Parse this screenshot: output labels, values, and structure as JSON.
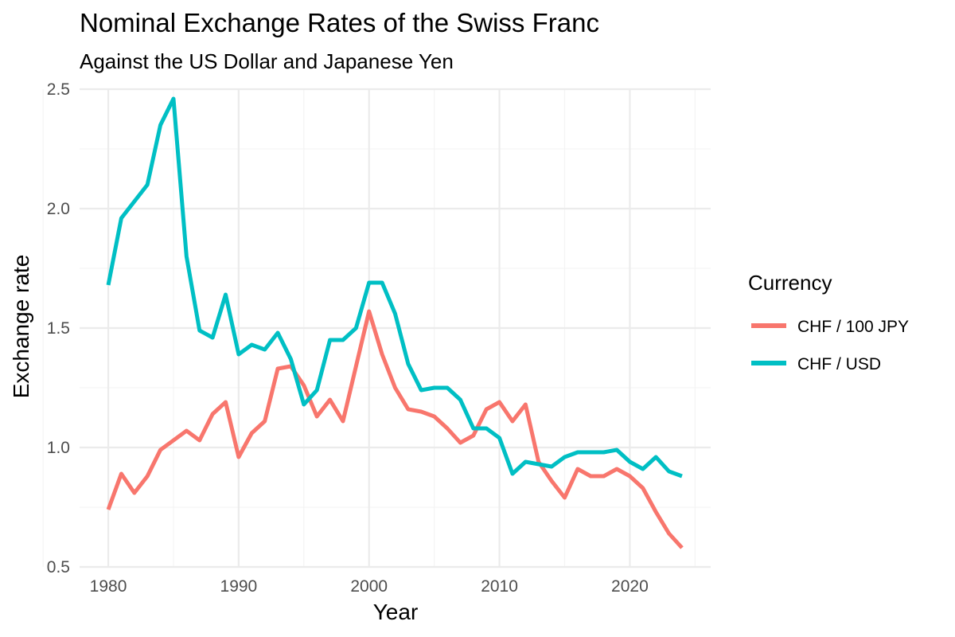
{
  "chart_data": {
    "type": "line",
    "title": "Nominal Exchange Rates of the Swiss Franc",
    "subtitle": "Against the US Dollar and Japanese Yen",
    "xlabel": "Year",
    "ylabel": "Exchange rate",
    "xlim": [
      1977.8,
      2026.2
    ],
    "ylim": [
      0.5,
      2.5
    ],
    "x_ticks": [
      1980,
      1990,
      2000,
      2010,
      2020
    ],
    "y_ticks": [
      0.5,
      1.0,
      1.5,
      2.0,
      2.5
    ],
    "x_tick_labels": [
      "1980",
      "1990",
      "2000",
      "2010",
      "2020"
    ],
    "y_tick_labels": [
      "0.5",
      "1.0",
      "1.5",
      "2.0",
      "2.5"
    ],
    "grid": true,
    "legend": {
      "title": "Currency",
      "position": "right"
    },
    "x": [
      1980,
      1981,
      1982,
      1983,
      1984,
      1985,
      1986,
      1987,
      1988,
      1989,
      1990,
      1991,
      1992,
      1993,
      1994,
      1995,
      1996,
      1997,
      1998,
      1999,
      2000,
      2001,
      2002,
      2003,
      2004,
      2005,
      2006,
      2007,
      2008,
      2009,
      2010,
      2011,
      2012,
      2013,
      2014,
      2015,
      2016,
      2017,
      2018,
      2019,
      2020,
      2021,
      2022,
      2023,
      2024
    ],
    "series": [
      {
        "name": "CHF / 100 JPY",
        "color": "#F8766D",
        "values": [
          0.74,
          0.89,
          0.81,
          0.88,
          0.99,
          1.03,
          1.07,
          1.03,
          1.14,
          1.19,
          0.96,
          1.06,
          1.11,
          1.33,
          1.34,
          1.26,
          1.13,
          1.2,
          1.11,
          1.34,
          1.57,
          1.39,
          1.25,
          1.16,
          1.15,
          1.13,
          1.08,
          1.02,
          1.05,
          1.16,
          1.19,
          1.11,
          1.18,
          0.94,
          0.86,
          0.79,
          0.91,
          0.88,
          0.88,
          0.91,
          0.88,
          0.83,
          0.73,
          0.64,
          0.58
        ]
      },
      {
        "name": "CHF / USD",
        "color": "#00BFC4",
        "values": [
          1.68,
          1.96,
          2.03,
          2.1,
          2.35,
          2.46,
          1.8,
          1.49,
          1.46,
          1.64,
          1.39,
          1.43,
          1.41,
          1.48,
          1.37,
          1.18,
          1.24,
          1.45,
          1.45,
          1.5,
          1.69,
          1.69,
          1.56,
          1.35,
          1.24,
          1.25,
          1.25,
          1.2,
          1.08,
          1.08,
          1.04,
          0.89,
          0.94,
          0.93,
          0.92,
          0.96,
          0.98,
          0.98,
          0.98,
          0.99,
          0.94,
          0.91,
          0.96,
          0.9,
          0.88
        ]
      }
    ]
  }
}
